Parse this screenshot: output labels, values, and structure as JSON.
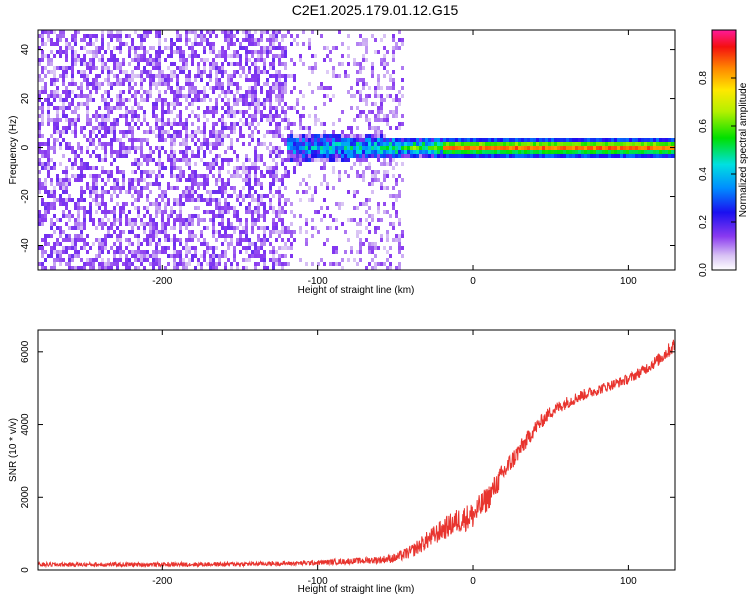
{
  "figure": {
    "title": "C2E1.2025.179.01.12.G15"
  },
  "chart_data": [
    {
      "type": "heatmap",
      "title": "",
      "xlabel": "Height of straight line (km)",
      "ylabel": "Frequency (Hz)",
      "xlim": [
        -280,
        130
      ],
      "ylim": [
        -50,
        48
      ],
      "xticks": [
        -200,
        -100,
        0,
        100
      ],
      "yticks": [
        -40,
        -20,
        0,
        20,
        40
      ],
      "grid": false,
      "colorbar": {
        "label": "Normalized spectral amplitude",
        "range": [
          0,
          1
        ],
        "ticks": [
          "0.0",
          "0.2",
          "0.4",
          "0.6",
          "0.8"
        ],
        "tick_values": [
          0.0,
          0.2,
          0.4,
          0.6,
          0.8
        ],
        "colormap": "rainbow (white, purple, blue, cyan, green, yellow, orange, red, magenta)"
      },
      "features": {
        "noise_region_x": [
          -280,
          -45
        ],
        "carrier_frequency_hz": 0,
        "carrier_onset_x": -120,
        "carrier_strong_from_x": -20
      }
    },
    {
      "type": "line",
      "title": "",
      "xlabel": "Height of straight line (km)",
      "ylabel": "SNR (10 * v/v)",
      "xlim": [
        -280,
        130
      ],
      "ylim": [
        0,
        6600
      ],
      "xticks": [
        -200,
        -100,
        0,
        100
      ],
      "yticks": [
        0,
        2000,
        4000,
        6000
      ],
      "grid": false,
      "series": [
        {
          "color": "#e8342e",
          "x": [
            -280,
            -240,
            -200,
            -160,
            -120,
            -100,
            -80,
            -60,
            -50,
            -40,
            -30,
            -20,
            -10,
            0,
            10,
            20,
            30,
            40,
            50,
            60,
            70,
            80,
            90,
            100,
            110,
            120,
            130
          ],
          "values": [
            150,
            150,
            150,
            160,
            180,
            200,
            240,
            280,
            330,
            500,
            800,
            1100,
            1350,
            1500,
            2000,
            2700,
            3300,
            3900,
            4350,
            4600,
            4800,
            4950,
            5100,
            5250,
            5500,
            5800,
            6200
          ],
          "noise_amplitude": [
            60,
            60,
            60,
            60,
            60,
            70,
            80,
            100,
            130,
            180,
            250,
            300,
            350,
            380,
            350,
            300,
            250,
            200,
            180,
            170,
            160,
            150,
            140,
            140,
            150,
            180,
            220
          ]
        }
      ]
    }
  ]
}
